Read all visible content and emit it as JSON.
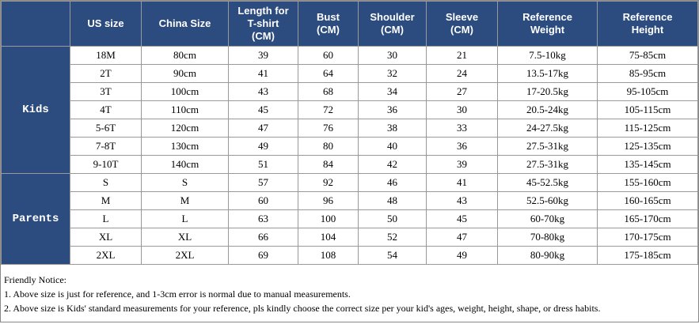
{
  "table": {
    "header": [
      [
        "US size"
      ],
      [
        "China Size"
      ],
      [
        "Length for",
        "T-shirt",
        "(CM)"
      ],
      [
        "Bust",
        "(CM)"
      ],
      [
        "Shoulder",
        "(CM)"
      ],
      [
        "Sleeve",
        "(CM)"
      ],
      [
        "Reference",
        "Weight"
      ],
      [
        "Reference",
        "Height"
      ]
    ],
    "groups": [
      {
        "label": "Kids",
        "rows": [
          [
            "18M",
            "80cm",
            "39",
            "60",
            "30",
            "21",
            "7.5-10kg",
            "75-85cm"
          ],
          [
            "2T",
            "90cm",
            "41",
            "64",
            "32",
            "24",
            "13.5-17kg",
            "85-95cm"
          ],
          [
            "3T",
            "100cm",
            "43",
            "68",
            "34",
            "27",
            "17-20.5kg",
            "95-105cm"
          ],
          [
            "4T",
            "110cm",
            "45",
            "72",
            "36",
            "30",
            "20.5-24kg",
            "105-115cm"
          ],
          [
            "5-6T",
            "120cm",
            "47",
            "76",
            "38",
            "33",
            "24-27.5kg",
            "115-125cm"
          ],
          [
            "7-8T",
            "130cm",
            "49",
            "80",
            "40",
            "36",
            "27.5-31kg",
            "125-135cm"
          ],
          [
            "9-10T",
            "140cm",
            "51",
            "84",
            "42",
            "39",
            "27.5-31kg",
            "135-145cm"
          ]
        ]
      },
      {
        "label": "Parents",
        "rows": [
          [
            "S",
            "S",
            "57",
            "92",
            "46",
            "41",
            "45-52.5kg",
            "155-160cm"
          ],
          [
            "M",
            "M",
            "60",
            "96",
            "48",
            "43",
            "52.5-60kg",
            "160-165cm"
          ],
          [
            "L",
            "L",
            "63",
            "100",
            "50",
            "45",
            "60-70kg",
            "165-170cm"
          ],
          [
            "XL",
            "XL",
            "66",
            "104",
            "52",
            "47",
            "70-80kg",
            "170-175cm"
          ],
          [
            "2XL",
            "2XL",
            "69",
            "108",
            "54",
            "49",
            "80-90kg",
            "175-185cm"
          ]
        ]
      }
    ]
  },
  "notice": [
    "Friendly Notice:",
    "1. Above size is just for reference, and 1-3cm error is normal due to manual measurements.",
    "2. Above size is Kids' standard measurements for your reference, pls kindly choose the correct size per your kid's ages, weight, height, shape, or dress habits."
  ]
}
